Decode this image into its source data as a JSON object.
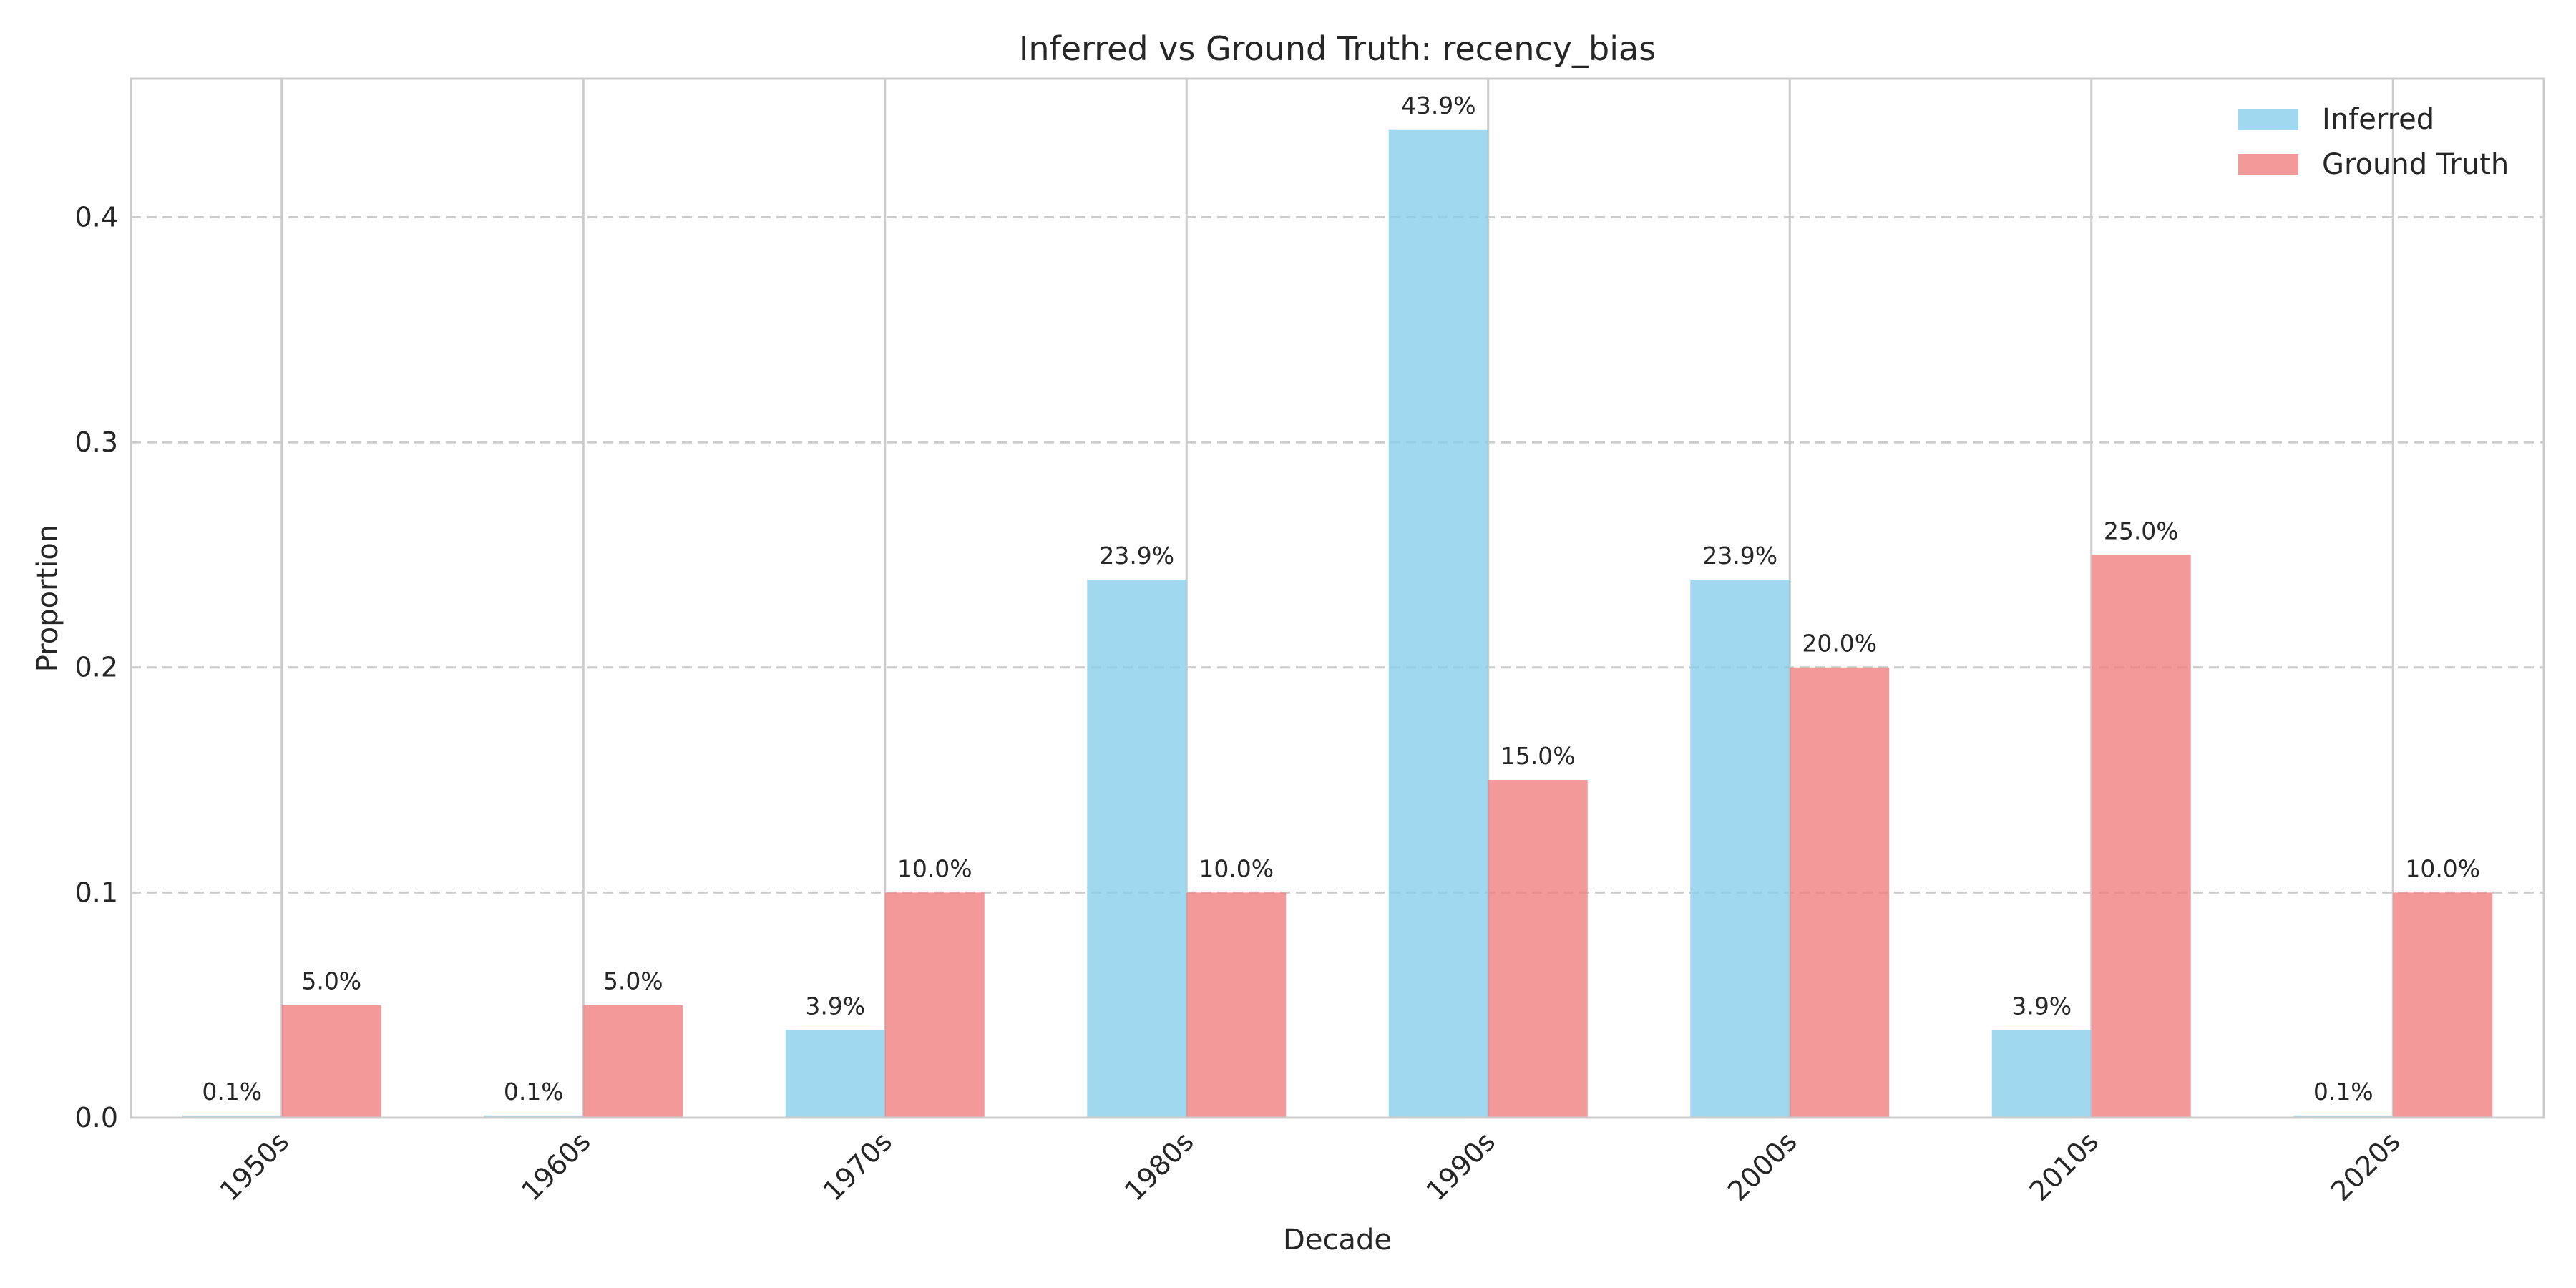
{
  "chart_data": {
    "type": "bar",
    "title": "Inferred vs Ground Truth: recency_bias",
    "xlabel": "Decade",
    "ylabel": "Proportion",
    "categories": [
      "1950s",
      "1960s",
      "1970s",
      "1980s",
      "1990s",
      "2000s",
      "2010s",
      "2020s"
    ],
    "series": [
      {
        "name": "Inferred",
        "color": "#87ceeb",
        "values": [
          0.001,
          0.001,
          0.039,
          0.239,
          0.439,
          0.239,
          0.039,
          0.001
        ],
        "labels": [
          "0.1%",
          "0.1%",
          "3.9%",
          "23.9%",
          "43.9%",
          "23.9%",
          "3.9%",
          "0.1%"
        ]
      },
      {
        "name": "Ground Truth",
        "color": "#f08080",
        "values": [
          0.05,
          0.05,
          0.1,
          0.1,
          0.15,
          0.2,
          0.25,
          0.1
        ],
        "labels": [
          "5.0%",
          "5.0%",
          "10.0%",
          "10.0%",
          "15.0%",
          "20.0%",
          "25.0%",
          "10.0%"
        ]
      }
    ],
    "ylim": [
      0,
      0.4615
    ],
    "yticks": [
      0.0,
      0.1,
      0.2,
      0.3,
      0.4
    ],
    "ytick_labels": [
      "0.0",
      "0.1",
      "0.2",
      "0.3",
      "0.4"
    ],
    "grid": true,
    "legend_position": "top-right"
  }
}
